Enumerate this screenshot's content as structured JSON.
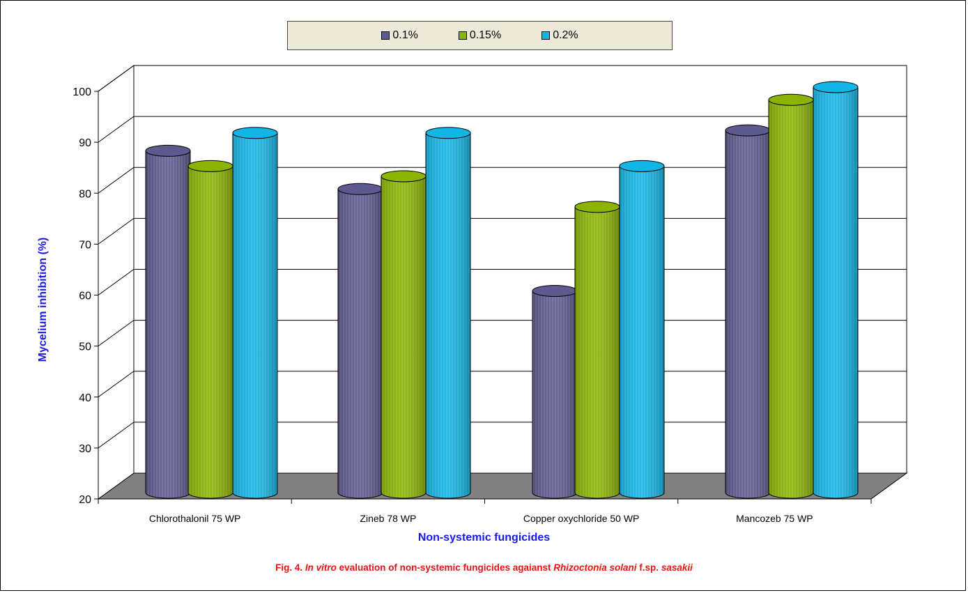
{
  "chart_data": {
    "type": "bar",
    "categories": [
      "Chlorothalonil 75 WP",
      "Zineb 78 WP",
      "Copper oxychloride 50 WP",
      "Mancozeb 75 WP"
    ],
    "series": [
      {
        "name": "0.1%",
        "values": [
          86,
          78.5,
          58.5,
          90
        ],
        "color": "#5c5a8e"
      },
      {
        "name": "0.15%",
        "values": [
          83,
          81,
          75,
          96
        ],
        "color": "#8ab400"
      },
      {
        "name": "0.2%",
        "values": [
          89.5,
          89.5,
          83,
          98.5
        ],
        "color": "#11b6e6"
      }
    ],
    "xlabel": "Non-systemic fungicides",
    "ylabel": "Mycelium inhibition (%)",
    "ylim": [
      20,
      100
    ],
    "yticks": [
      20,
      30,
      40,
      50,
      60,
      70,
      80,
      90,
      100
    ],
    "grid": true,
    "legend_position": "top-center",
    "style": "3d-cylinder"
  },
  "caption": {
    "prefix": "Fig. 4.",
    "italic_1": "In vitro",
    "middle": "evaluation of non-systemic fungicides agaianst",
    "italic_2": "Rhizoctonia solani",
    "connector": "f.sp.",
    "italic_3": "sasakii"
  }
}
